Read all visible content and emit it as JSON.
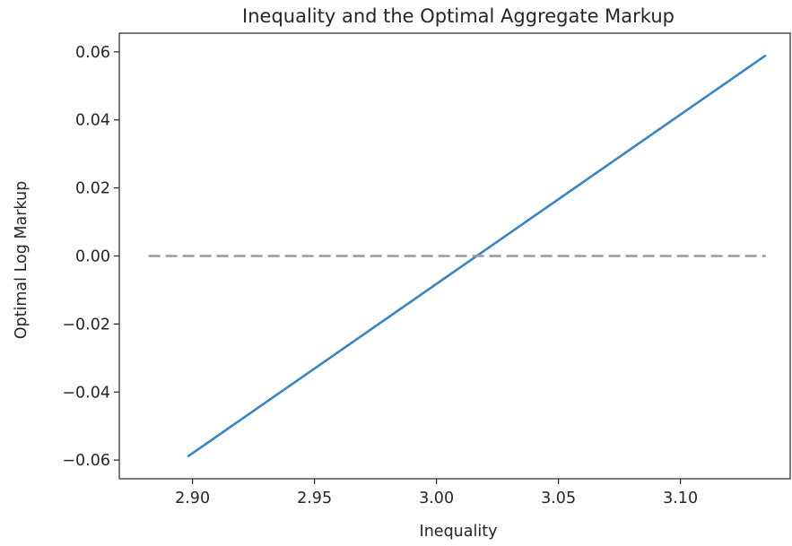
{
  "chart_data": {
    "type": "line",
    "title": "Inequality and the Optimal Aggregate Markup",
    "xlabel": "Inequality",
    "ylabel": "Optimal Log Markup",
    "xlim": [
      2.87,
      3.145
    ],
    "ylim": [
      -0.0655,
      0.0655
    ],
    "x_ticks": [
      2.9,
      2.95,
      3.0,
      3.05,
      3.1
    ],
    "x_tick_labels": [
      "2.90",
      "2.95",
      "3.00",
      "3.05",
      "3.10"
    ],
    "y_ticks": [
      0.06,
      0.04,
      0.02,
      0.0,
      -0.02,
      -0.04,
      -0.06
    ],
    "y_tick_labels": [
      "0.06",
      "0.04",
      "0.02",
      "0.00",
      "−0.02",
      "−0.04",
      "−0.06"
    ],
    "grid": false,
    "series": [
      {
        "style": "solid",
        "color": "#3b84c1",
        "x": [
          2.898,
          3.135
        ],
        "y": [
          -0.059,
          0.059
        ]
      },
      {
        "style": "dashed",
        "color": "#999999",
        "x": [
          2.882,
          3.135
        ],
        "y": [
          0.0,
          0.0
        ]
      }
    ]
  }
}
